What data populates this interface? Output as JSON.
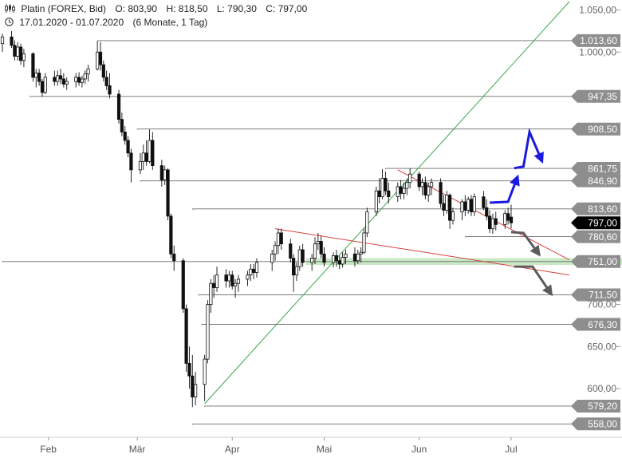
{
  "header": {
    "instrument": "Platin (FOREX, Bid)",
    "open": "O: 803,90",
    "high": "H: 818,50",
    "low": "L: 790,30",
    "close": "C: 797,00",
    "date_range": "17.01.2020 - 01.07.2020",
    "period": "(6 Monate, 1 Tag)"
  },
  "icons": {
    "chart_type": "candlestick-icon",
    "clock": "clock-icon"
  },
  "chart_data": {
    "type": "candlestick",
    "title": "Platin (FOREX, Bid)",
    "y_axis": {
      "range": [
        545,
        1060
      ],
      "ticks": [
        600,
        650,
        700,
        1000,
        1050
      ],
      "tick_labels": [
        "600,00",
        "650,00",
        "700,00",
        "1.000,00",
        "1.050,00"
      ],
      "position": "right"
    },
    "x_axis": {
      "range": [
        "2020-01-17",
        "2020-07-20"
      ],
      "ticks": [
        "2020-02-01",
        "2020-03-01",
        "2020-04-01",
        "2020-05-01",
        "2020-06-01",
        "2020-07-01"
      ],
      "tick_labels": [
        "Feb",
        "Mär",
        "Apr",
        "Mai",
        "Jun",
        "Jul"
      ]
    },
    "levels": [
      {
        "value": 1013.6,
        "label": "1.013,60",
        "from": "2020-02-17",
        "color": "#8a8a8a"
      },
      {
        "value": 947.35,
        "label": "947,35",
        "from": "2020-01-26",
        "color": "#8a8a8a"
      },
      {
        "value": 908.5,
        "label": "908,50",
        "from": "2020-03-01",
        "color": "#8a8a8a"
      },
      {
        "value": 861.75,
        "label": "861,75",
        "from": "2020-05-21",
        "color": "#8a8a8a"
      },
      {
        "value": 846.9,
        "label": "846,90",
        "from": "2020-03-02",
        "color": "#8a8a8a"
      },
      {
        "value": 813.6,
        "label": "813,60",
        "from": "2020-03-19",
        "color": "#8a8a8a"
      },
      {
        "value": 797.0,
        "label": "797,00",
        "from": null,
        "color": "#000000"
      },
      {
        "value": 780.6,
        "label": "780,60",
        "from": "2020-06-16",
        "color": "#8a8a8a"
      },
      {
        "value": 751.0,
        "label": "751,00",
        "from": "2020-01-17",
        "color": "#8a8a8a"
      },
      {
        "value": 711.5,
        "label": "711,50",
        "from": "2020-03-21",
        "color": "#8a8a8a"
      },
      {
        "value": 676.3,
        "label": "676,30",
        "from": "2020-03-22",
        "color": "#8a8a8a"
      },
      {
        "value": 579.2,
        "label": "579,20",
        "from": "2020-03-23",
        "color": "#8a8a8a"
      },
      {
        "value": 558.0,
        "label": "558,00",
        "from": "2020-03-19",
        "color": "#8a8a8a"
      }
    ],
    "support_zone": {
      "from": 747,
      "to": 755,
      "start": "2020-04-25",
      "color": "#b7e0b0"
    },
    "trendlines": [
      {
        "name": "uptrend",
        "color": "#3aa84a",
        "points": [
          [
            "2020-03-23",
            582
          ],
          [
            "2020-07-20",
            1060
          ]
        ]
      },
      {
        "name": "upper-downtrend",
        "color": "#d94040",
        "points": [
          [
            "2020-05-25",
            860
          ],
          [
            "2020-07-20",
            753
          ]
        ]
      },
      {
        "name": "lower-downtrend",
        "color": "#d94040",
        "points": [
          [
            "2020-04-15",
            790
          ],
          [
            "2020-07-20",
            735
          ]
        ]
      }
    ],
    "candles": [
      [
        "2020-01-17",
        1010,
        1022,
        1000,
        1018
      ],
      [
        "2020-01-20",
        1018,
        1025,
        1005,
        1008
      ],
      [
        "2020-01-21",
        1008,
        1014,
        990,
        995
      ],
      [
        "2020-01-22",
        995,
        1012,
        990,
        1006
      ],
      [
        "2020-01-23",
        1006,
        1010,
        985,
        990
      ],
      [
        "2020-01-24",
        990,
        1004,
        982,
        998
      ],
      [
        "2020-01-27",
        998,
        1000,
        965,
        970
      ],
      [
        "2020-01-28",
        970,
        980,
        958,
        975
      ],
      [
        "2020-01-29",
        975,
        980,
        960,
        965
      ],
      [
        "2020-01-30",
        965,
        968,
        947,
        952
      ],
      [
        "2020-01-31",
        952,
        975,
        950,
        970
      ],
      [
        "2020-02-03",
        970,
        978,
        960,
        965
      ],
      [
        "2020-02-04",
        965,
        978,
        960,
        972
      ],
      [
        "2020-02-05",
        972,
        980,
        962,
        968
      ],
      [
        "2020-02-06",
        968,
        975,
        958,
        962
      ],
      [
        "2020-02-07",
        962,
        970,
        955,
        965
      ],
      [
        "2020-02-10",
        965,
        975,
        958,
        970
      ],
      [
        "2020-02-11",
        970,
        976,
        960,
        964
      ],
      [
        "2020-02-12",
        964,
        972,
        958,
        968
      ],
      [
        "2020-02-13",
        968,
        978,
        962,
        974
      ],
      [
        "2020-02-14",
        974,
        985,
        965,
        980
      ],
      [
        "2020-02-17",
        980,
        1013,
        978,
        1000
      ],
      [
        "2020-02-18",
        1000,
        1012,
        978,
        985
      ],
      [
        "2020-02-19",
        985,
        990,
        965,
        970
      ],
      [
        "2020-02-20",
        970,
        978,
        955,
        960
      ],
      [
        "2020-02-21",
        960,
        975,
        945,
        950
      ],
      [
        "2020-02-24",
        950,
        955,
        915,
        920
      ],
      [
        "2020-02-25",
        920,
        928,
        900,
        905
      ],
      [
        "2020-02-26",
        905,
        912,
        890,
        895
      ],
      [
        "2020-02-27",
        895,
        900,
        875,
        880
      ],
      [
        "2020-02-28",
        880,
        885,
        845,
        860
      ],
      [
        "2020-03-02",
        860,
        880,
        855,
        870
      ],
      [
        "2020-03-03",
        870,
        890,
        860,
        880
      ],
      [
        "2020-03-04",
        880,
        895,
        865,
        870
      ],
      [
        "2020-03-05",
        870,
        908,
        868,
        895
      ],
      [
        "2020-03-06",
        895,
        905,
        860,
        865
      ],
      [
        "2020-03-09",
        865,
        872,
        840,
        848
      ],
      [
        "2020-03-10",
        848,
        865,
        842,
        860
      ],
      [
        "2020-03-11",
        860,
        862,
        800,
        805
      ],
      [
        "2020-03-12",
        805,
        808,
        755,
        760
      ],
      [
        "2020-03-13",
        760,
        770,
        740,
        752
      ],
      [
        "2020-03-16",
        752,
        755,
        690,
        695
      ],
      [
        "2020-03-17",
        695,
        700,
        620,
        630
      ],
      [
        "2020-03-18",
        630,
        650,
        600,
        615
      ],
      [
        "2020-03-19",
        615,
        640,
        578,
        590
      ],
      [
        "2020-03-20",
        590,
        620,
        580,
        605
      ],
      [
        "2020-03-23",
        605,
        640,
        585,
        635
      ],
      [
        "2020-03-24",
        635,
        705,
        630,
        700
      ],
      [
        "2020-03-25",
        700,
        730,
        690,
        725
      ],
      [
        "2020-03-26",
        725,
        735,
        708,
        720
      ],
      [
        "2020-03-27",
        720,
        745,
        715,
        735
      ],
      [
        "2020-03-30",
        735,
        742,
        720,
        728
      ],
      [
        "2020-03-31",
        728,
        740,
        720,
        735
      ],
      [
        "2020-04-01",
        735,
        740,
        718,
        722
      ],
      [
        "2020-04-02",
        722,
        730,
        708,
        725
      ],
      [
        "2020-04-03",
        725,
        735,
        715,
        730
      ],
      [
        "2020-04-06",
        730,
        740,
        722,
        735
      ],
      [
        "2020-04-07",
        735,
        748,
        728,
        742
      ],
      [
        "2020-04-08",
        742,
        748,
        730,
        738
      ],
      [
        "2020-04-09",
        738,
        755,
        732,
        750
      ],
      [
        "2020-04-14",
        750,
        765,
        740,
        760
      ],
      [
        "2020-04-15",
        760,
        775,
        752,
        770
      ],
      [
        "2020-04-16",
        770,
        790,
        760,
        785
      ],
      [
        "2020-04-17",
        785,
        790,
        765,
        772
      ],
      [
        "2020-04-20",
        772,
        778,
        750,
        755
      ],
      [
        "2020-04-21",
        755,
        760,
        715,
        735
      ],
      [
        "2020-04-22",
        735,
        750,
        728,
        745
      ],
      [
        "2020-04-23",
        745,
        770,
        740,
        765
      ],
      [
        "2020-04-24",
        765,
        772,
        745,
        750
      ],
      [
        "2020-04-27",
        750,
        760,
        740,
        755
      ],
      [
        "2020-04-28",
        755,
        780,
        748,
        772
      ],
      [
        "2020-04-29",
        772,
        785,
        765,
        775
      ],
      [
        "2020-04-30",
        775,
        782,
        755,
        760
      ],
      [
        "2020-05-01",
        760,
        768,
        745,
        750
      ],
      [
        "2020-05-04",
        750,
        762,
        744,
        758
      ],
      [
        "2020-05-05",
        758,
        765,
        745,
        752
      ],
      [
        "2020-05-06",
        752,
        758,
        742,
        748
      ],
      [
        "2020-05-07",
        748,
        762,
        744,
        756
      ],
      [
        "2020-05-08",
        756,
        765,
        748,
        760
      ],
      [
        "2020-05-11",
        760,
        768,
        745,
        752
      ],
      [
        "2020-05-12",
        752,
        765,
        748,
        760
      ],
      [
        "2020-05-13",
        760,
        768,
        750,
        762
      ],
      [
        "2020-05-14",
        762,
        790,
        760,
        785
      ],
      [
        "2020-05-15",
        785,
        815,
        780,
        810
      ],
      [
        "2020-05-18",
        810,
        840,
        805,
        835
      ],
      [
        "2020-05-19",
        835,
        850,
        820,
        828
      ],
      [
        "2020-05-20",
        828,
        861,
        825,
        850
      ],
      [
        "2020-05-21",
        850,
        858,
        830,
        835
      ],
      [
        "2020-05-22",
        835,
        845,
        820,
        828
      ],
      [
        "2020-05-25",
        828,
        845,
        822,
        840
      ],
      [
        "2020-05-26",
        840,
        848,
        825,
        832
      ],
      [
        "2020-05-27",
        832,
        845,
        825,
        838
      ],
      [
        "2020-05-28",
        838,
        850,
        830,
        845
      ],
      [
        "2020-05-29",
        845,
        862,
        838,
        855
      ],
      [
        "2020-06-01",
        855,
        858,
        835,
        840
      ],
      [
        "2020-06-02",
        840,
        850,
        830,
        845
      ],
      [
        "2020-06-03",
        845,
        852,
        825,
        830
      ],
      [
        "2020-06-04",
        830,
        845,
        822,
        840
      ],
      [
        "2020-06-05",
        840,
        850,
        830,
        845
      ],
      [
        "2020-06-08",
        845,
        850,
        815,
        820
      ],
      [
        "2020-06-09",
        820,
        830,
        805,
        812
      ],
      [
        "2020-06-10",
        812,
        835,
        808,
        830
      ],
      [
        "2020-06-11",
        830,
        832,
        790,
        800
      ],
      [
        "2020-06-12",
        800,
        815,
        795,
        810
      ],
      [
        "2020-06-15",
        810,
        825,
        800,
        822
      ],
      [
        "2020-06-16",
        822,
        830,
        805,
        812
      ],
      [
        "2020-06-17",
        812,
        828,
        808,
        825
      ],
      [
        "2020-06-18",
        825,
        830,
        805,
        810
      ],
      [
        "2020-06-19",
        810,
        832,
        805,
        828
      ],
      [
        "2020-06-22",
        828,
        835,
        812,
        815
      ],
      [
        "2020-06-23",
        815,
        825,
        800,
        805
      ],
      [
        "2020-06-24",
        805,
        812,
        785,
        790
      ],
      [
        "2020-06-25",
        790,
        808,
        784,
        802
      ],
      [
        "2020-06-26",
        802,
        810,
        788,
        795
      ],
      [
        "2020-06-29",
        795,
        812,
        790,
        808
      ],
      [
        "2020-06-30",
        808,
        815,
        795,
        800
      ],
      [
        "2020-07-01",
        803.9,
        818.5,
        790.3,
        797.0
      ]
    ],
    "arrows": [
      {
        "name": "bullish-path-arrow",
        "color": "#1a1ae0",
        "points": [
          [
            "2020-06-24",
            821
          ],
          [
            "2020-06-30",
            822
          ],
          [
            "2020-07-03",
            851
          ]
        ]
      },
      {
        "name": "bullish-target-arrow",
        "color": "#1a1ae0",
        "points": [
          [
            "2020-07-02",
            862
          ],
          [
            "2020-07-05",
            864
          ],
          [
            "2020-07-07",
            905
          ],
          [
            "2020-07-11",
            871
          ]
        ]
      },
      {
        "name": "bearish-arrow-1",
        "color": "#5c5c5c",
        "points": [
          [
            "2020-07-01",
            786
          ],
          [
            "2020-07-05",
            785
          ],
          [
            "2020-07-10",
            760
          ]
        ]
      },
      {
        "name": "bearish-arrow-2",
        "color": "#5c5c5c",
        "points": [
          [
            "2020-07-02",
            745
          ],
          [
            "2020-07-08",
            745
          ],
          [
            "2020-07-14",
            713
          ]
        ]
      }
    ]
  }
}
